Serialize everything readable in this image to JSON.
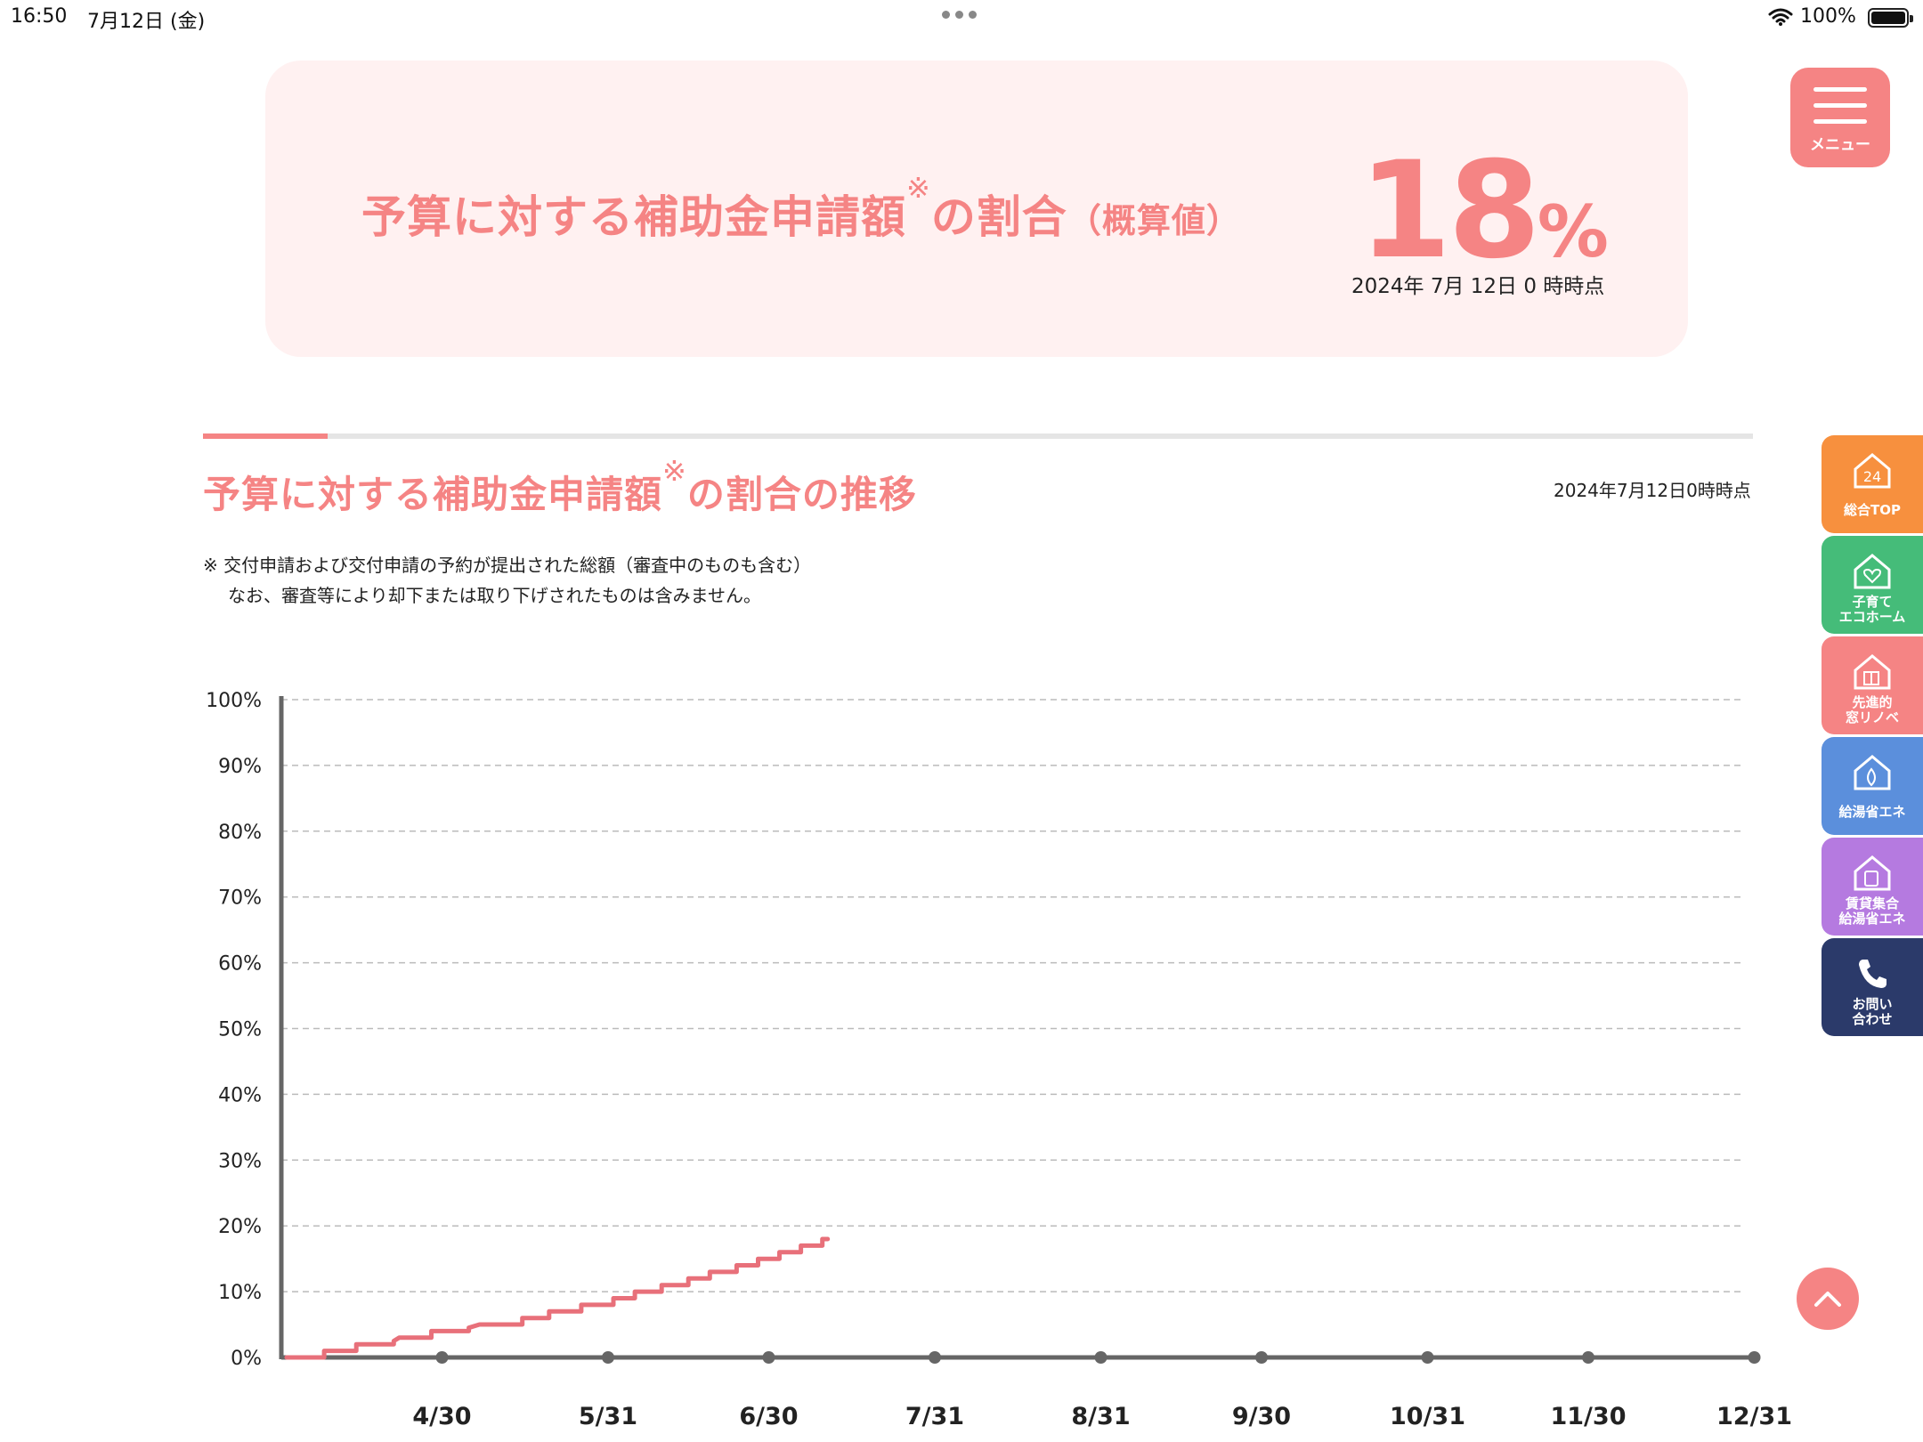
{
  "status_bar": {
    "time": "16:50",
    "date": "7月12日 (金)",
    "battery": "100%",
    "icons": [
      "more-dots-icon",
      "wifi-icon",
      "battery-icon"
    ]
  },
  "hero": {
    "title_main": "予算に対する補助金申請額",
    "title_mark": "※",
    "title_tail": "の割合",
    "title_paren": "（概算値）",
    "percent_value": "18",
    "percent_unit": "%",
    "as_of": "2024年 7月 12日 0 時時点"
  },
  "menu": {
    "label": "メニュー"
  },
  "section": {
    "title_main": "予算に対する補助金申請額",
    "title_mark": "※",
    "title_tail": "の割合の推移",
    "as_of": "2024年7月12日0時時点",
    "note_line1": "※ 交付申請および交付申請の予約が提出された総額（審査中のものも含む）",
    "note_line2": "なお、審査等により却下または取り下げされたものは含みません。"
  },
  "side_nav": [
    {
      "label": "総合TOP",
      "icon": "house-24-icon"
    },
    {
      "label": "子育て\nエコホーム",
      "icon": "house-heart-icon"
    },
    {
      "label": "先進的\n窓リノベ",
      "icon": "house-window-icon"
    },
    {
      "label": "給湯省エネ",
      "icon": "house-drop-icon"
    },
    {
      "label": "賃貸集合\n給湯省エネ",
      "icon": "house-heater-icon"
    },
    {
      "label": "お問い\n合わせ",
      "icon": "phone-icon"
    }
  ],
  "colors": {
    "accent": "#f58484",
    "hero_bg": "#fff1f1",
    "axis": "#666666",
    "grid": "#bbbbbb"
  },
  "chart_data": {
    "type": "line",
    "line_style": "step",
    "ylim": [
      0,
      100
    ],
    "y_ticks": [
      "0%",
      "10%",
      "20%",
      "30%",
      "40%",
      "50%",
      "60%",
      "70%",
      "80%",
      "90%",
      "100%"
    ],
    "x_ticks": [
      "4/30",
      "5/31",
      "6/30",
      "7/31",
      "8/31",
      "9/30",
      "10/31",
      "11/30",
      "12/31"
    ],
    "x_start": "3/31",
    "grid": true,
    "series": [
      {
        "color": "#e8707a",
        "points": [
          [
            "4/1",
            0
          ],
          [
            "4/8",
            0
          ],
          [
            "4/8",
            1
          ],
          [
            "4/14",
            1
          ],
          [
            "4/14",
            2
          ],
          [
            "4/21",
            2
          ],
          [
            "4/21",
            2.5
          ],
          [
            "4/22",
            3
          ],
          [
            "4/28",
            3
          ],
          [
            "4/28",
            4
          ],
          [
            "5/5",
            4
          ],
          [
            "5/5",
            4.5
          ],
          [
            "5/7",
            5
          ],
          [
            "5/15",
            5
          ],
          [
            "5/15",
            6
          ],
          [
            "5/20",
            6
          ],
          [
            "5/20",
            7
          ],
          [
            "5/26",
            7
          ],
          [
            "5/26",
            8
          ],
          [
            "6/1",
            8
          ],
          [
            "6/1",
            9
          ],
          [
            "6/5",
            9
          ],
          [
            "6/5",
            10
          ],
          [
            "6/10",
            10
          ],
          [
            "6/10",
            11
          ],
          [
            "6/15",
            11
          ],
          [
            "6/15",
            12
          ],
          [
            "6/19",
            12
          ],
          [
            "6/19",
            13
          ],
          [
            "6/24",
            13
          ],
          [
            "6/24",
            14
          ],
          [
            "6/28",
            14
          ],
          [
            "6/28",
            15
          ],
          [
            "7/2",
            15
          ],
          [
            "7/2",
            16
          ],
          [
            "7/6",
            16
          ],
          [
            "7/6",
            17
          ],
          [
            "7/10",
            17
          ],
          [
            "7/10",
            18
          ],
          [
            "7/11",
            18
          ]
        ]
      }
    ]
  }
}
